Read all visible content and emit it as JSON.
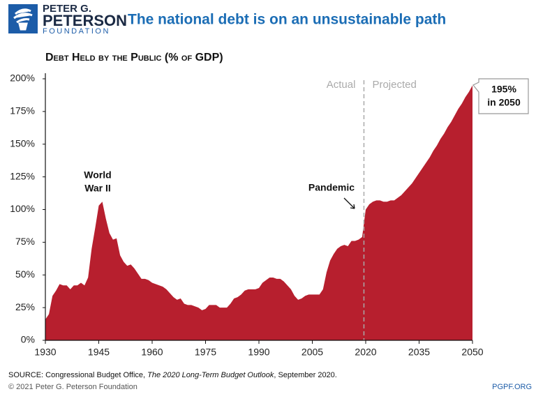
{
  "logo": {
    "line1": "PETER G.",
    "line2": "PETERSON",
    "line3": "FOUNDATION"
  },
  "chart_data": {
    "type": "area",
    "title": "The national debt is on an unsustainable path",
    "subtitle": "Debt Held by the Public (% of GDP)",
    "color": "#b71f2e",
    "x": [
      1930,
      1931,
      1932,
      1933,
      1934,
      1935,
      1936,
      1937,
      1938,
      1939,
      1940,
      1941,
      1942,
      1943,
      1944,
      1945,
      1946,
      1947,
      1948,
      1949,
      1950,
      1951,
      1952,
      1953,
      1954,
      1955,
      1956,
      1957,
      1958,
      1959,
      1960,
      1961,
      1962,
      1963,
      1964,
      1965,
      1966,
      1967,
      1968,
      1969,
      1970,
      1971,
      1972,
      1973,
      1974,
      1975,
      1976,
      1977,
      1978,
      1979,
      1980,
      1981,
      1982,
      1983,
      1984,
      1985,
      1986,
      1987,
      1988,
      1989,
      1990,
      1991,
      1992,
      1993,
      1994,
      1995,
      1996,
      1997,
      1998,
      1999,
      2000,
      2001,
      2002,
      2003,
      2004,
      2005,
      2006,
      2007,
      2008,
      2009,
      2010,
      2011,
      2012,
      2013,
      2014,
      2015,
      2016,
      2017,
      2018,
      2019,
      2020,
      2021,
      2022,
      2023,
      2024,
      2025,
      2026,
      2027,
      2028,
      2029,
      2030,
      2031,
      2032,
      2033,
      2034,
      2035,
      2036,
      2037,
      2038,
      2039,
      2040,
      2041,
      2042,
      2043,
      2044,
      2045,
      2046,
      2047,
      2048,
      2049,
      2050
    ],
    "values": [
      16,
      20,
      34,
      38,
      43,
      42,
      42,
      39,
      42,
      42,
      44,
      42,
      48,
      70,
      86,
      103,
      106,
      93,
      82,
      77,
      78,
      65,
      60,
      57,
      58,
      55,
      51,
      47,
      47,
      46,
      44,
      43,
      42,
      41,
      39,
      36,
      33,
      31,
      32,
      28,
      27,
      27,
      26,
      25,
      23,
      24,
      27,
      27,
      27,
      25,
      25,
      25,
      28,
      32,
      33,
      35,
      38,
      39,
      39,
      39,
      40,
      44,
      46,
      48,
      48,
      47,
      47,
      45,
      42,
      39,
      34,
      31,
      32,
      34,
      35,
      35,
      35,
      35,
      39,
      52,
      61,
      66,
      70,
      72,
      73,
      72,
      76,
      76,
      77,
      79,
      100,
      104,
      106,
      107,
      107,
      106,
      106,
      107,
      107,
      109,
      111,
      114,
      117,
      120,
      124,
      128,
      132,
      136,
      140,
      145,
      149,
      154,
      158,
      163,
      167,
      172,
      177,
      181,
      186,
      190,
      195
    ],
    "xlim": [
      1930,
      2050
    ],
    "xticks": [
      1930,
      1945,
      1960,
      1975,
      1990,
      2005,
      2020,
      2035,
      2050
    ],
    "ylim": [
      0,
      200
    ],
    "yticks": [
      {
        "value": 0,
        "label": "0%"
      },
      {
        "value": 25,
        "label": "25%"
      },
      {
        "value": 50,
        "label": "50%"
      },
      {
        "value": 75,
        "label": "75%"
      },
      {
        "value": 100,
        "label": "100%"
      },
      {
        "value": 125,
        "label": "125%"
      },
      {
        "value": 150,
        "label": "150%"
      },
      {
        "value": 175,
        "label": "175%"
      },
      {
        "value": 200,
        "label": "200%"
      }
    ],
    "divider": {
      "left": "Actual",
      "right": "Projected"
    },
    "annotations": {
      "war": [
        "World",
        "War II"
      ],
      "pandemic": "Pandemic",
      "callout": [
        "195%",
        "in 2050"
      ]
    }
  },
  "footer": {
    "source_prefix": "SOURCE: Congressional Budget Office, ",
    "source_title": "The 2020 Long-Term Budget Outlook",
    "source_suffix": ", September 2020.",
    "copyright": "© 2021 Peter G. Peterson Foundation",
    "site": "PGPF.ORG"
  }
}
